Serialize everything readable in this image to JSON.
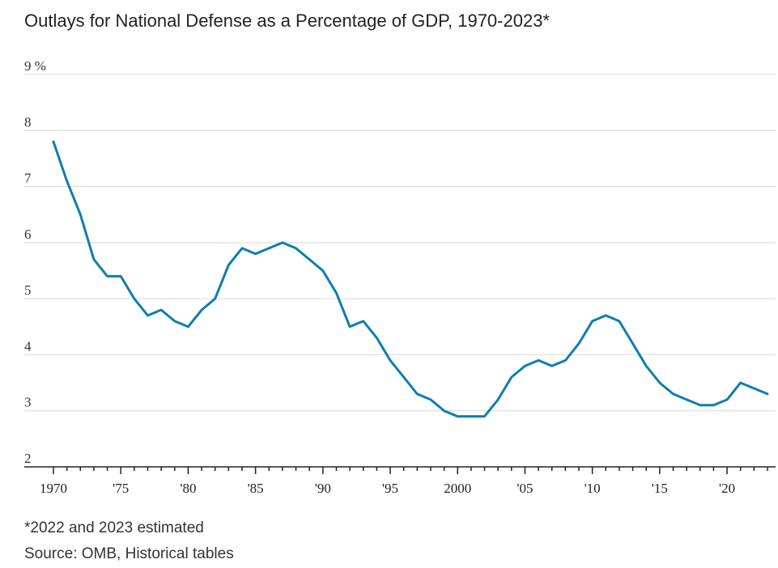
{
  "title": "Outlays for National Defense as a Percentage of GDP, 1970-2023*",
  "footnote": "*2022 and 2023 estimated",
  "source": "Source: OMB, Historical tables",
  "colors": {
    "line": "#0f7db3",
    "grid": "#d9d9d9",
    "axis": "#222222"
  },
  "chart_data": {
    "type": "line",
    "title": "Outlays for National Defense as a Percentage of GDP, 1970-2023*",
    "xlabel": "",
    "ylabel": "",
    "xlim": [
      1970,
      2023
    ],
    "ylim": [
      2,
      9
    ],
    "grid": true,
    "y_ticks": [
      {
        "value": 9,
        "label": "9 %"
      },
      {
        "value": 8,
        "label": "8"
      },
      {
        "value": 7,
        "label": "7"
      },
      {
        "value": 6,
        "label": "6"
      },
      {
        "value": 5,
        "label": "5"
      },
      {
        "value": 4,
        "label": "4"
      },
      {
        "value": 3,
        "label": "3"
      },
      {
        "value": 2,
        "label": "2"
      }
    ],
    "x_ticks": [
      {
        "value": 1970,
        "label": "1970"
      },
      {
        "value": 1975,
        "label": "'75"
      },
      {
        "value": 1980,
        "label": "'80"
      },
      {
        "value": 1985,
        "label": "'85"
      },
      {
        "value": 1990,
        "label": "'90"
      },
      {
        "value": 1995,
        "label": "'95"
      },
      {
        "value": 2000,
        "label": "2000"
      },
      {
        "value": 2005,
        "label": "'05"
      },
      {
        "value": 2010,
        "label": "'10"
      },
      {
        "value": 2015,
        "label": "'15"
      },
      {
        "value": 2020,
        "label": "'20"
      }
    ],
    "series": [
      {
        "x": [
          1970,
          1971,
          1972,
          1973,
          1974,
          1975,
          1976,
          1977,
          1978,
          1979,
          1980,
          1981,
          1982,
          1983,
          1984,
          1985,
          1986,
          1987,
          1988,
          1989,
          1990,
          1991,
          1992,
          1993,
          1994,
          1995,
          1996,
          1997,
          1998,
          1999,
          2000,
          2001,
          2002,
          2003,
          2004,
          2005,
          2006,
          2007,
          2008,
          2009,
          2010,
          2011,
          2012,
          2013,
          2014,
          2015,
          2016,
          2017,
          2018,
          2019,
          2020,
          2021,
          2022,
          2023
        ],
        "values": [
          7.8,
          7.1,
          6.5,
          5.7,
          5.4,
          5.4,
          5.0,
          4.7,
          4.8,
          4.6,
          4.5,
          4.8,
          5.0,
          5.6,
          5.9,
          5.8,
          5.9,
          6.0,
          5.9,
          5.7,
          5.5,
          5.1,
          4.5,
          4.6,
          4.3,
          3.9,
          3.6,
          3.3,
          3.2,
          3.0,
          2.9,
          2.9,
          2.9,
          3.2,
          3.6,
          3.8,
          3.9,
          3.8,
          3.9,
          4.2,
          4.6,
          4.7,
          4.6,
          4.2,
          3.8,
          3.5,
          3.3,
          3.2,
          3.1,
          3.1,
          3.2,
          3.5,
          3.4,
          3.3
        ]
      }
    ]
  }
}
